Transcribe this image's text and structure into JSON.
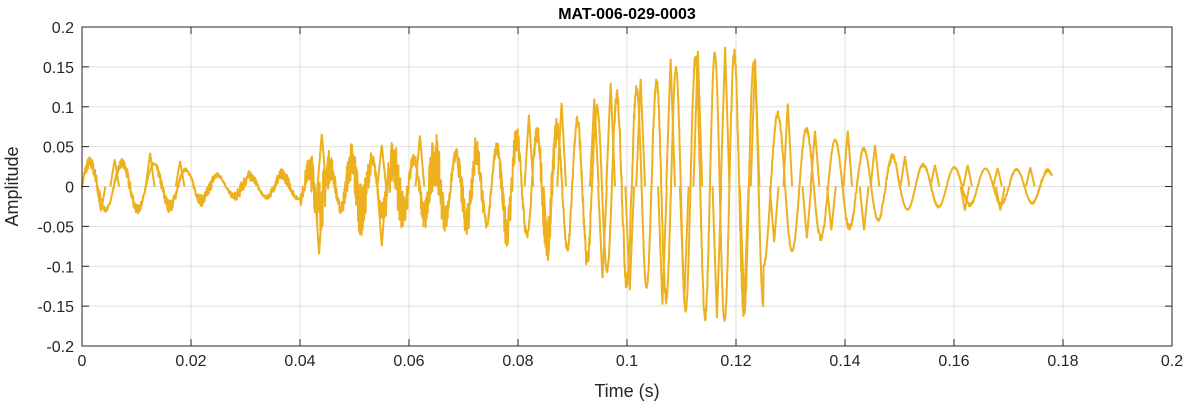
{
  "chart_data": {
    "type": "line",
    "title": "MAT-006-029-0003",
    "xlabel": "Time (s)",
    "ylabel": "Amplitude",
    "xlim": [
      0,
      0.2
    ],
    "ylim": [
      -0.2,
      0.2
    ],
    "grid": true,
    "x_ticks": [
      0,
      0.02,
      0.04,
      0.06,
      0.08,
      0.1,
      0.12,
      0.14,
      0.16,
      0.18,
      0.2
    ],
    "x_tick_labels": [
      "0",
      "0.02",
      "0.04",
      "0.06",
      "0.08",
      "0.1",
      "0.12",
      "0.14",
      "0.16",
      "0.18",
      "0.2"
    ],
    "y_ticks": [
      0.2,
      0.15,
      0.1,
      0.05,
      0,
      -0.05,
      -0.1,
      -0.15,
      -0.2
    ],
    "y_tick_labels": [
      "0.2",
      "0.15",
      "0.1",
      "0.05",
      "0",
      "-0.05",
      "-0.1",
      "-0.15",
      "-0.2"
    ],
    "series": [
      {
        "color": "#EDB120",
        "segments": [
          {
            "t0": 0.0,
            "t1": 0.04,
            "freq": 170,
            "amp": [
              0.03,
              0.028,
              0.012,
              0.015
            ],
            "noise": 0.008
          },
          {
            "t0": 0.04,
            "t1": 0.07,
            "freq": 260,
            "amp": [
              0.02,
              0.03,
              0.035,
              0.04
            ],
            "noise": 0.035
          },
          {
            "t0": 0.07,
            "t1": 0.09,
            "freq": 270,
            "amp": [
              0.04,
              0.05,
              0.065,
              0.08
            ],
            "noise": 0.025
          },
          {
            "t0": 0.09,
            "t1": 0.105,
            "freq": 275,
            "amp": [
              0.08,
              0.1,
              0.12,
              0.13
            ],
            "noise": 0.012
          },
          {
            "t0": 0.105,
            "t1": 0.125,
            "freq": 280,
            "amp": [
              0.13,
              0.16,
              0.17,
              0.15
            ],
            "noise": 0.008
          },
          {
            "t0": 0.125,
            "t1": 0.15,
            "freq": 190,
            "amp": [
              0.1,
              0.07,
              0.05,
              0.035
            ],
            "noise": 0.004
          },
          {
            "t0": 0.15,
            "t1": 0.178,
            "freq": 175,
            "amp": [
              0.03,
              0.024,
              0.022,
              0.02
            ],
            "noise": 0.002
          }
        ],
        "peaks_max": [
          {
            "x": 0.006,
            "y": 0.034
          },
          {
            "x": 0.0125,
            "y": 0.042
          },
          {
            "x": 0.018,
            "y": 0.032
          },
          {
            "x": 0.044,
            "y": 0.066
          },
          {
            "x": 0.055,
            "y": 0.052
          },
          {
            "x": 0.062,
            "y": 0.064
          },
          {
            "x": 0.082,
            "y": 0.09
          },
          {
            "x": 0.088,
            "y": 0.105
          },
          {
            "x": 0.094,
            "y": 0.11
          },
          {
            "x": 0.097,
            "y": 0.13
          },
          {
            "x": 0.1025,
            "y": 0.135
          },
          {
            "x": 0.108,
            "y": 0.16
          },
          {
            "x": 0.113,
            "y": 0.17
          },
          {
            "x": 0.118,
            "y": 0.175
          },
          {
            "x": 0.1235,
            "y": 0.16
          },
          {
            "x": 0.1295,
            "y": 0.104
          },
          {
            "x": 0.1345,
            "y": 0.07
          },
          {
            "x": 0.1405,
            "y": 0.07
          },
          {
            "x": 0.1455,
            "y": 0.052
          },
          {
            "x": 0.151,
            "y": 0.038
          },
          {
            "x": 0.1565,
            "y": 0.027
          },
          {
            "x": 0.1625,
            "y": 0.027
          },
          {
            "x": 0.168,
            "y": 0.023
          },
          {
            "x": 0.174,
            "y": 0.024
          }
        ],
        "peaks_min": [
          {
            "x": 0.0035,
            "y": -0.031
          },
          {
            "x": 0.0435,
            "y": -0.085
          },
          {
            "x": 0.055,
            "y": -0.075
          },
          {
            "x": 0.0855,
            "y": -0.093
          },
          {
            "x": 0.0955,
            "y": -0.115
          },
          {
            "x": 0.1005,
            "y": -0.13
          },
          {
            "x": 0.1065,
            "y": -0.148
          },
          {
            "x": 0.1105,
            "y": -0.145
          },
          {
            "x": 0.1165,
            "y": -0.165
          },
          {
            "x": 0.1215,
            "y": -0.15
          },
          {
            "x": 0.127,
            "y": -0.07
          },
          {
            "x": 0.133,
            "y": -0.065
          },
          {
            "x": 0.1375,
            "y": -0.055
          },
          {
            "x": 0.1435,
            "y": -0.055
          },
          {
            "x": 0.162,
            "y": -0.03
          },
          {
            "x": 0.1685,
            "y": -0.03
          }
        ]
      }
    ]
  }
}
